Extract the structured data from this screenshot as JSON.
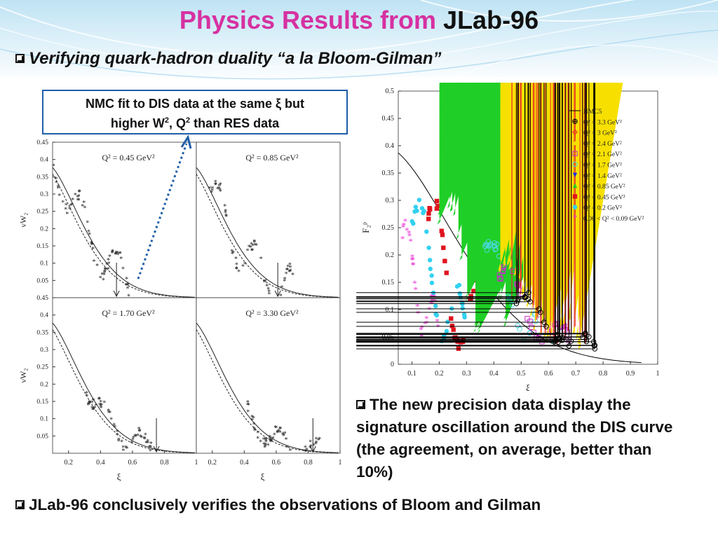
{
  "slide": {
    "title_part1": "Physics Results from",
    "title_part2": "JLab-96",
    "bullet_top": "Verifying quark-hadron duality “a la Bloom-Gilman”",
    "callout_line1": "NMC fit to DIS data at the same ξ but",
    "callout_line2_a": "higher W",
    "callout_sup1": "2",
    "callout_line2_b": ", Q",
    "callout_sup2": "2",
    "callout_line2_c": " than RES data",
    "note_text": "The new precision data display the signature oscillation around the DIS curve (the agreement, on average, better than 10%)",
    "bullet_bottom": "JLab-96 conclusively verifies the observations of Bloom and Gilman",
    "accent_title_color": "#d631a1",
    "callout_border_color": "#1f5ea8"
  },
  "chart_data": [
    {
      "type": "scatter",
      "panels": [
        {
          "label": "Q² = 0.45  GeV²",
          "arrow_x": 0.5
        },
        {
          "label": "Q² = 0.85  GeV²",
          "arrow_x": 0.61
        },
        {
          "label": "Q² = 1.70  GeV²",
          "arrow_x": 0.75
        },
        {
          "label": "Q² = 3.30  GeV²",
          "arrow_x": 0.83
        }
      ],
      "ylabel": "νW₂",
      "xlabel": "ξ",
      "xlim": [
        0.1,
        1.0
      ],
      "ylim": [
        0,
        0.45
      ],
      "y_ticks": [
        "0.05",
        "0.1",
        "0.15",
        "0.2",
        "0.25",
        "0.3",
        "0.35",
        "0.4",
        "0.45"
      ],
      "x_ticks": [
        "0.2",
        "0.4",
        "0.6",
        "0.8",
        "1"
      ]
    },
    {
      "type": "scatter",
      "xlabel": "ξ",
      "ylabel": "F₂ᵖ",
      "xlim": [
        0.05,
        1.0
      ],
      "ylim": [
        0,
        0.5
      ],
      "x_ticks": [
        "0.1",
        "0.2",
        "0.3",
        "0.4",
        "0.5",
        "0.6",
        "0.7",
        "0.8",
        "0.9",
        "1"
      ],
      "y_ticks": [
        "0",
        "0.05",
        "0.1",
        "0.15",
        "0.2",
        "0.25",
        "0.3",
        "0.35",
        "0.4",
        "0.45",
        "0.5"
      ],
      "legend_position": "top-right",
      "series": [
        {
          "name": "NMC5",
          "color": "#000000",
          "marker": "line"
        },
        {
          "name": "Q² = 3.3 GeV²",
          "color": "#000000",
          "marker": "cross-circle"
        },
        {
          "name": "Q² = 3 GeV²",
          "color": "#e8262a",
          "marker": "open-diamond"
        },
        {
          "name": "Q² = 2.4 GeV²",
          "color": "#f7e000",
          "marker": "triangle"
        },
        {
          "name": "Q² = 2.1 GeV²",
          "color": "#c62fc9",
          "marker": "open-square"
        },
        {
          "name": "Q² = 1.7 GeV²",
          "color": "#4bd8e6",
          "marker": "open-circle"
        },
        {
          "name": "Q² = 1.4 GeV²",
          "color": "#1f2fe0",
          "marker": "triangle-down"
        },
        {
          "name": "Q² = 0.85 GeV²",
          "color": "#1fcf27",
          "marker": "triangle"
        },
        {
          "name": "Q² = 0.45 GeV²",
          "color": "#e0141f",
          "marker": "square"
        },
        {
          "name": "Q² = 0.2 GeV²",
          "color": "#33d1f0",
          "marker": "circle"
        },
        {
          "name": "0.06 < Q² < 0.09 GeV²",
          "color": "#ec3bd6",
          "marker": "star"
        }
      ]
    }
  ]
}
